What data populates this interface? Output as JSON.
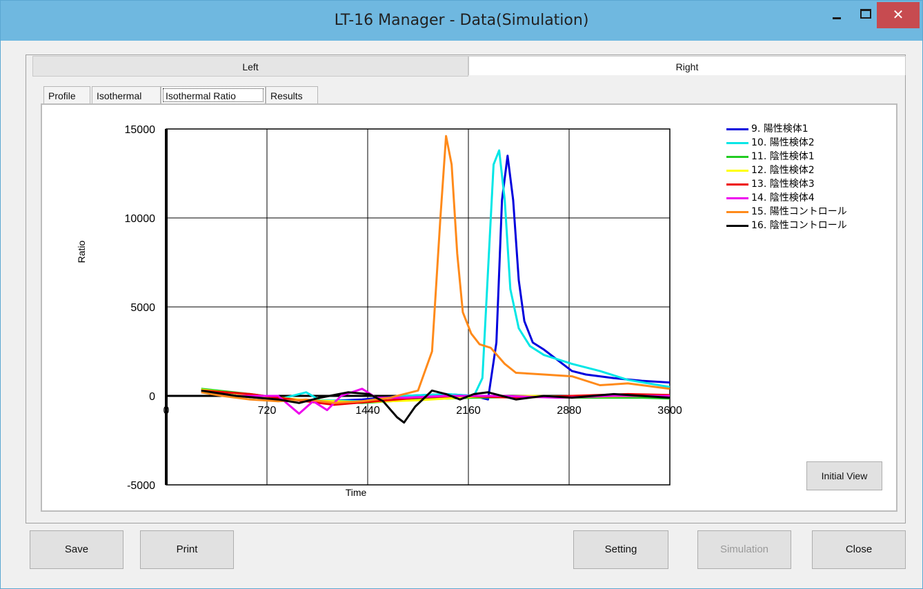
{
  "window": {
    "title": "LT-16 Manager - Data(Simulation)",
    "min_symbol": "",
    "close_symbol": "✕"
  },
  "side_tabs": [
    {
      "label": "Left"
    },
    {
      "label": "Right"
    }
  ],
  "inner_tabs": [
    {
      "label": "Profile"
    },
    {
      "label": "Isothermal"
    },
    {
      "label": "Isothermal Ratio"
    },
    {
      "label": "Results"
    }
  ],
  "buttons": {
    "save": "Save",
    "print": "Print",
    "setting": "Setting",
    "simulation": "Simulation",
    "close": "Close",
    "initial_view": "Initial View"
  },
  "chart_data": {
    "type": "line",
    "title": "",
    "xlabel": "Time",
    "ylabel": "Ratio",
    "xlim": [
      0,
      3600
    ],
    "ylim": [
      -5000,
      15000
    ],
    "xticks": [
      0,
      720,
      1440,
      2160,
      2880,
      3600
    ],
    "yticks": [
      -5000,
      0,
      5000,
      10000,
      15000
    ],
    "grid": true,
    "legend_position": "right",
    "series": [
      {
        "name": "9. 陽性検体1",
        "color": "#0000dd",
        "x": [
          250,
          500,
          800,
          1100,
          1400,
          1700,
          2000,
          2200,
          2300,
          2360,
          2400,
          2440,
          2480,
          2520,
          2560,
          2620,
          2700,
          2800,
          2900,
          3000,
          3200,
          3400,
          3600
        ],
        "y": [
          300,
          0,
          -200,
          -300,
          -200,
          0,
          100,
          0,
          -200,
          3000,
          11000,
          13500,
          11000,
          6500,
          4200,
          3000,
          2600,
          2000,
          1400,
          1200,
          1000,
          850,
          750
        ]
      },
      {
        "name": "10. 陽性検体2",
        "color": "#00e6e6",
        "x": [
          250,
          500,
          800,
          1000,
          1100,
          1400,
          1700,
          2000,
          2200,
          2260,
          2300,
          2340,
          2380,
          2420,
          2460,
          2520,
          2600,
          2700,
          2900,
          3100,
          3300,
          3600
        ],
        "y": [
          250,
          0,
          -200,
          200,
          -250,
          -300,
          0,
          100,
          0,
          1000,
          7000,
          13000,
          13800,
          11000,
          6000,
          3800,
          2800,
          2300,
          1800,
          1400,
          900,
          500
        ]
      },
      {
        "name": "11. 陰性検体1",
        "color": "#22cc22",
        "x": [
          250,
          600,
          1000,
          1400,
          1800,
          2200,
          2600,
          3000,
          3400,
          3600
        ],
        "y": [
          400,
          100,
          -300,
          -400,
          -200,
          -100,
          -50,
          -100,
          -100,
          -150
        ]
      },
      {
        "name": "12. 陰性検体2",
        "color": "#ffff00",
        "x": [
          250,
          600,
          1000,
          1400,
          1800,
          2200,
          2600,
          3000,
          3400,
          3600
        ],
        "y": [
          350,
          50,
          -250,
          -350,
          -250,
          -50,
          0,
          -50,
          0,
          -50
        ]
      },
      {
        "name": "13. 陰性検体3",
        "color": "#ee0000",
        "x": [
          250,
          600,
          900,
          1200,
          1500,
          1800,
          2100,
          2500,
          2900,
          3300,
          3600
        ],
        "y": [
          300,
          100,
          -200,
          -500,
          -300,
          -100,
          0,
          -100,
          0,
          100,
          50
        ]
      },
      {
        "name": "14. 陰性検体4",
        "color": "#ee00ee",
        "x": [
          250,
          500,
          800,
          950,
          1050,
          1150,
          1250,
          1400,
          1500,
          1700,
          2000,
          2400,
          2800,
          3200,
          3600
        ],
        "y": [
          200,
          0,
          0,
          -1000,
          -300,
          -800,
          0,
          400,
          -100,
          -100,
          0,
          0,
          -100,
          0,
          0
        ]
      },
      {
        "name": "15. 陽性コントロール",
        "color": "#ff8a1a",
        "x": [
          250,
          400,
          600,
          800,
          1000,
          1200,
          1400,
          1600,
          1800,
          1900,
          1960,
          2000,
          2040,
          2080,
          2120,
          2180,
          2240,
          2320,
          2420,
          2500,
          2700,
          2900,
          3100,
          3300,
          3600
        ],
        "y": [
          200,
          0,
          -200,
          -300,
          -200,
          -400,
          -300,
          -100,
          300,
          2500,
          10000,
          14600,
          13000,
          8000,
          4700,
          3500,
          2900,
          2700,
          1800,
          1300,
          1200,
          1100,
          600,
          700,
          400
        ]
      },
      {
        "name": "16. 陰性コントロール",
        "color": "#000000",
        "x": [
          250,
          500,
          800,
          950,
          1100,
          1300,
          1450,
          1550,
          1650,
          1700,
          1780,
          1900,
          2000,
          2100,
          2200,
          2300,
          2500,
          2700,
          2900,
          3200,
          3600
        ],
        "y": [
          300,
          0,
          -200,
          -400,
          -100,
          200,
          100,
          -300,
          -1200,
          -1500,
          -600,
          300,
          100,
          -200,
          100,
          200,
          -200,
          0,
          -100,
          100,
          -100
        ]
      }
    ]
  }
}
